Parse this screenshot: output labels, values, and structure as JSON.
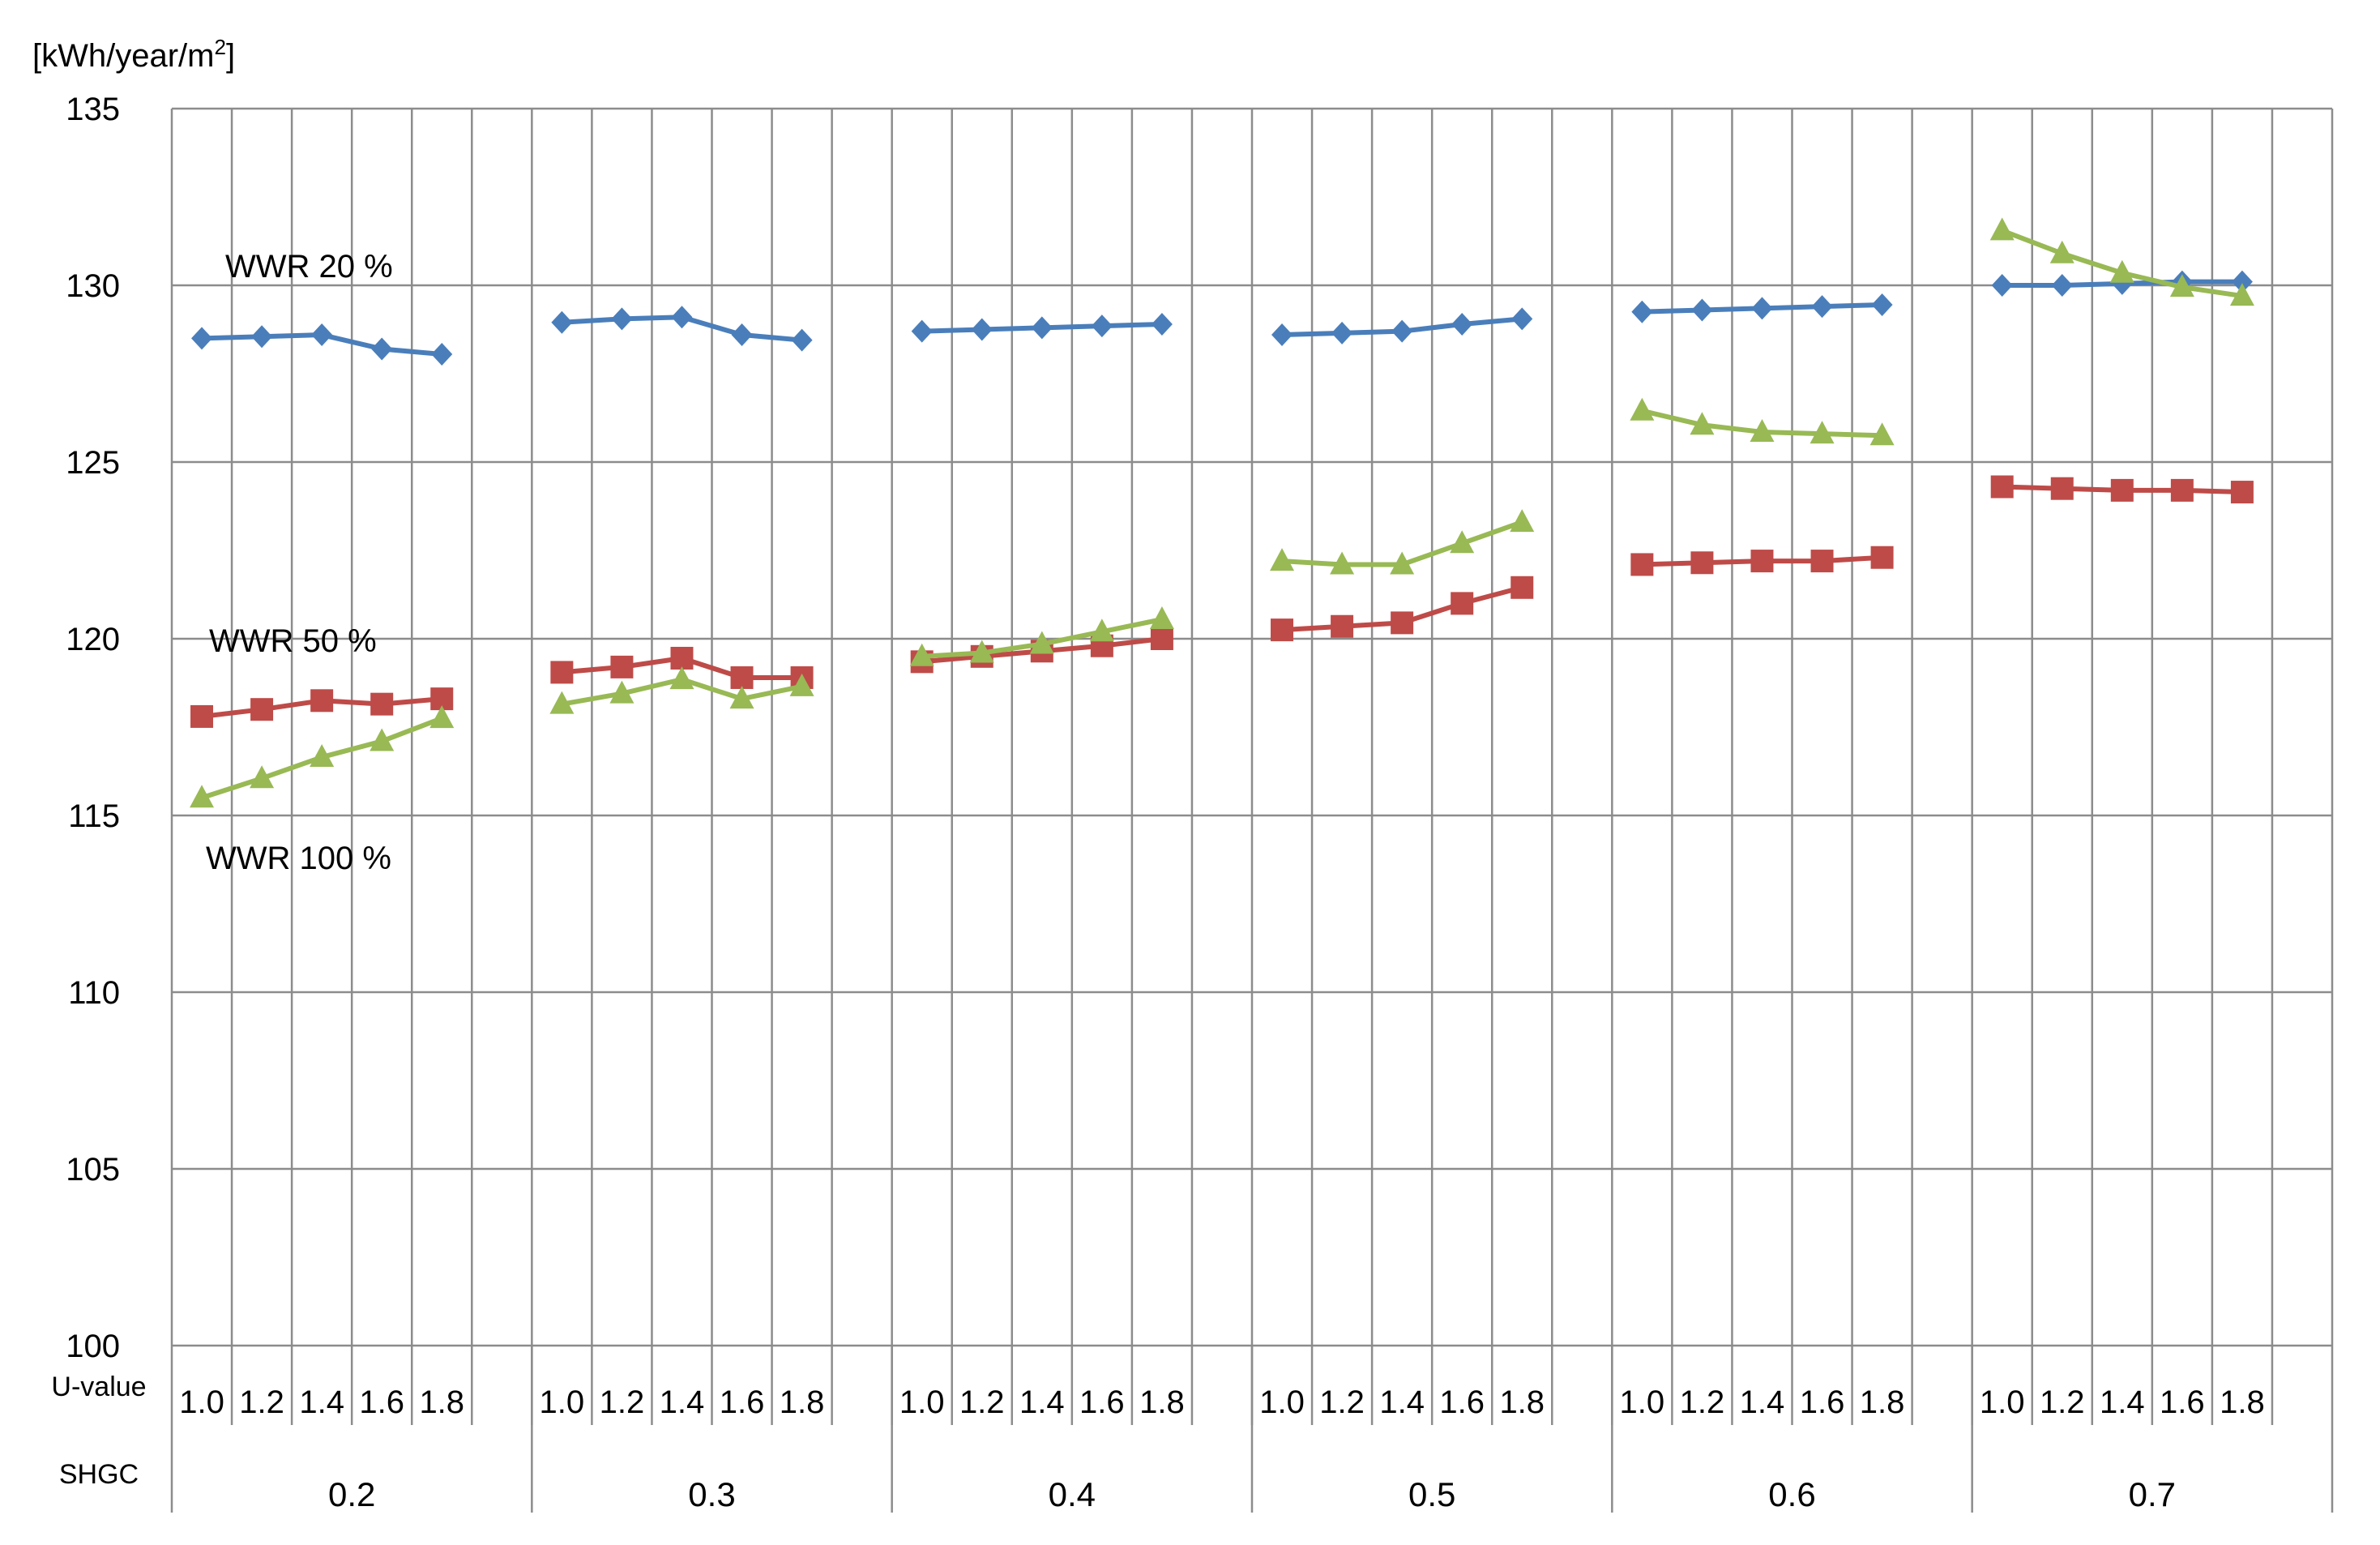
{
  "chart_data": {
    "type": "line",
    "ylabel": "[kWh/year/m2]",
    "ylim": [
      100,
      135
    ],
    "yticks": [
      100,
      105,
      110,
      115,
      120,
      125,
      130,
      135
    ],
    "grid": true,
    "row_labels": {
      "u_value": "U-value",
      "shgc": "SHGC"
    },
    "u_values": [
      "1.0",
      "1.2",
      "1.4",
      "1.6",
      "1.8"
    ],
    "shgc_groups": [
      "0.2",
      "0.3",
      "0.4",
      "0.5",
      "0.6",
      "0.7"
    ],
    "annotations": [
      "WWR 20 %",
      "WWR 50 %",
      "WWR 100 %"
    ],
    "series": [
      {
        "name": "WWR 20 %",
        "color": "#4A7EBB",
        "marker": "diamond",
        "values": [
          [
            128.5,
            128.55,
            128.6,
            128.2,
            128.05
          ],
          [
            128.95,
            129.05,
            129.1,
            128.6,
            128.45
          ],
          [
            128.7,
            128.75,
            128.8,
            128.85,
            128.9
          ],
          [
            128.6,
            128.65,
            128.7,
            128.9,
            129.05
          ],
          [
            129.25,
            129.3,
            129.35,
            129.4,
            129.45
          ],
          [
            130.0,
            130.0,
            130.05,
            130.1,
            130.1
          ]
        ]
      },
      {
        "name": "WWR 50 %",
        "color": "#BE4B48",
        "marker": "square",
        "values": [
          [
            117.8,
            118.0,
            118.25,
            118.15,
            118.3
          ],
          [
            119.05,
            119.2,
            119.45,
            118.9,
            118.9
          ],
          [
            119.35,
            119.5,
            119.65,
            119.8,
            120.0
          ],
          [
            120.25,
            120.35,
            120.45,
            121.0,
            121.45
          ],
          [
            122.1,
            122.15,
            122.2,
            122.2,
            122.3
          ],
          [
            124.3,
            124.25,
            124.2,
            124.2,
            124.15
          ]
        ]
      },
      {
        "name": "WWR 100 %",
        "color": "#98B954",
        "marker": "triangle",
        "values": [
          [
            115.5,
            116.05,
            116.65,
            117.1,
            117.75
          ],
          [
            118.15,
            118.45,
            118.85,
            118.3,
            118.65
          ],
          [
            119.5,
            119.6,
            119.85,
            120.2,
            120.55
          ],
          [
            122.2,
            122.1,
            122.1,
            122.7,
            123.3
          ],
          [
            126.45,
            126.05,
            125.85,
            125.8,
            125.75
          ],
          [
            131.55,
            130.9,
            130.35,
            129.95,
            129.7
          ]
        ]
      }
    ]
  }
}
